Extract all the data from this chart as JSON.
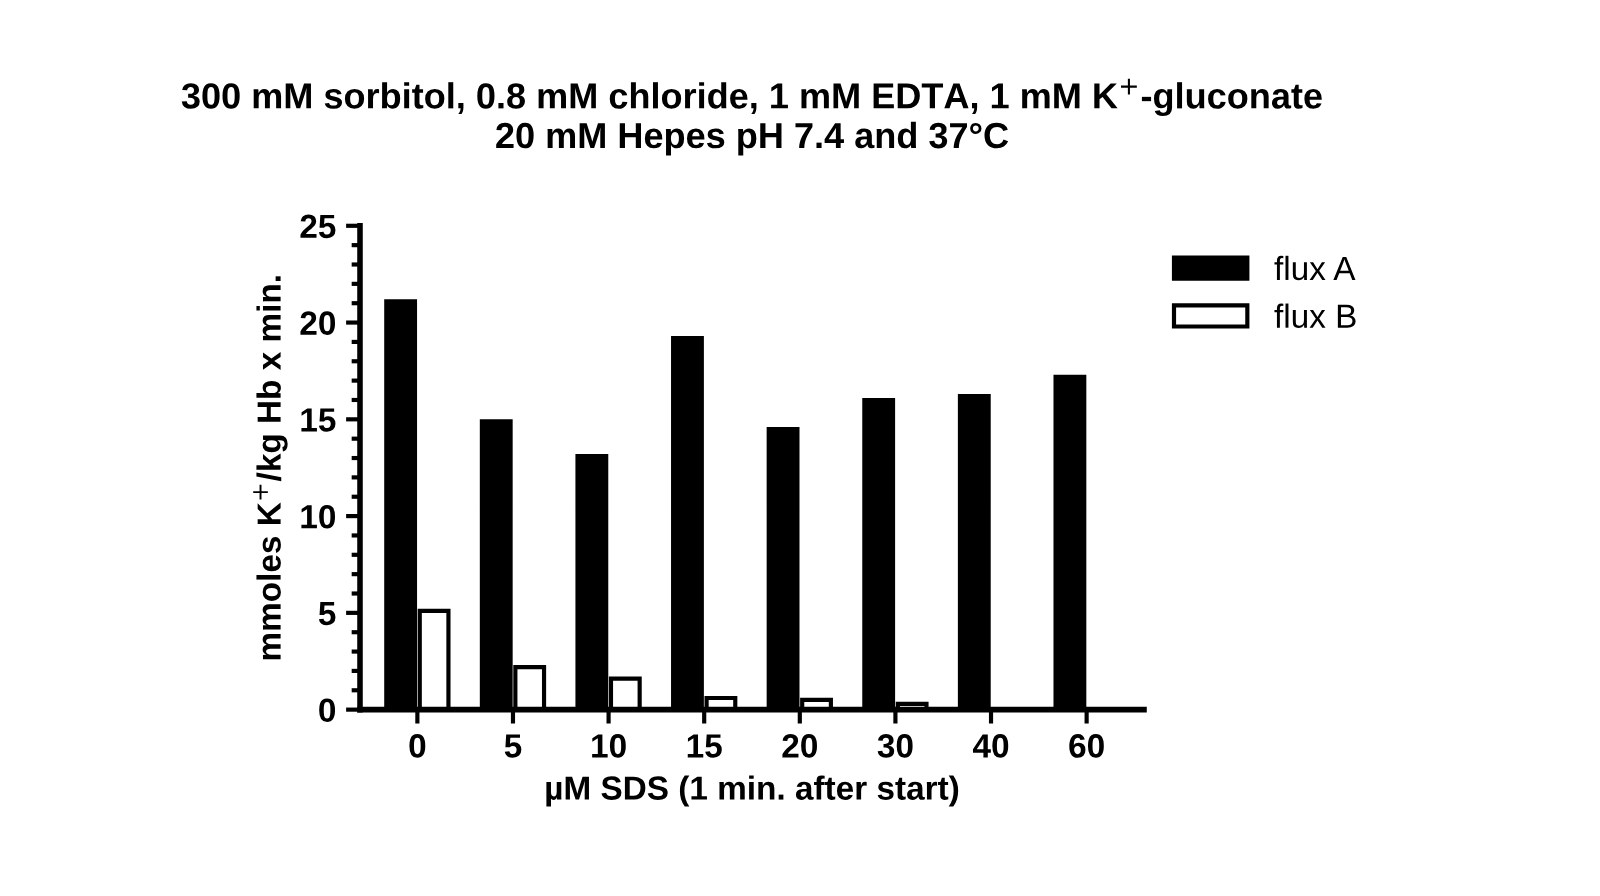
{
  "chart_data": {
    "type": "bar",
    "title": "300 mM sorbitol, 0.8 mM chloride, 1 mM EDTA, 1 mM K$^{+}$-gluconate\n20 mM Hepes pH 7.4 and 37°C",
    "xlabel": "µM SDS (1 min. after start)",
    "ylabel": "mmoles K$^{+}$/kg Hb x min.",
    "categories": [
      "0",
      "5",
      "10",
      "15",
      "20",
      "30",
      "40",
      "60"
    ],
    "series": [
      {
        "name": "flux A",
        "color": "#000000",
        "values": [
          21.1,
          14.9,
          13.1,
          19.2,
          14.5,
          16.0,
          16.2,
          17.2
        ]
      },
      {
        "name": "flux B",
        "color": "#ffffff",
        "values": [
          5.1,
          2.2,
          1.6,
          0.6,
          0.5,
          0.3,
          null,
          null
        ]
      }
    ],
    "ylim": [
      0,
      25
    ],
    "yticks": [
      0,
      5,
      10,
      15,
      20,
      25
    ],
    "grid": false,
    "legend": "top right"
  }
}
